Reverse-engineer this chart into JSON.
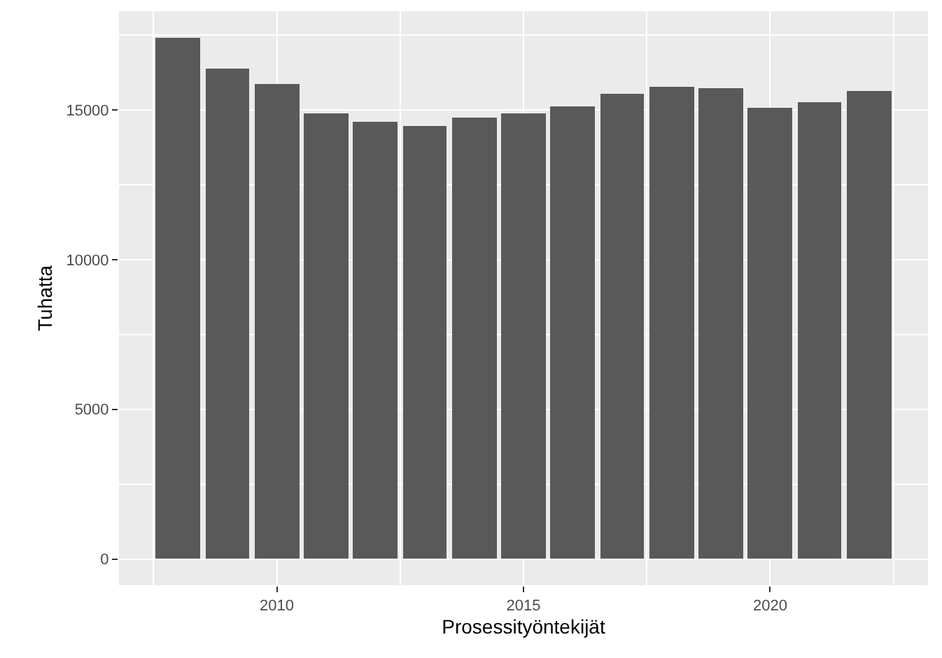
{
  "chart_data": {
    "type": "bar",
    "xlabel": "Prosessityöntekijät",
    "ylabel": "Tuhatta",
    "x": [
      2008,
      2009,
      2010,
      2011,
      2012,
      2013,
      2014,
      2015,
      2016,
      2017,
      2018,
      2019,
      2020,
      2021,
      2022
    ],
    "values": [
      17420,
      16370,
      15880,
      14890,
      14590,
      14470,
      14760,
      14890,
      15120,
      15540,
      15760,
      15710,
      15060,
      15230,
      15610
    ],
    "color": "#595959",
    "xlim": [
      2006.8,
      2023.2
    ],
    "xticks": [
      2010,
      2015,
      2020
    ],
    "ylim": [
      -870,
      18290
    ],
    "yticks": [
      0,
      5000,
      10000,
      15000
    ],
    "grid": true
  }
}
